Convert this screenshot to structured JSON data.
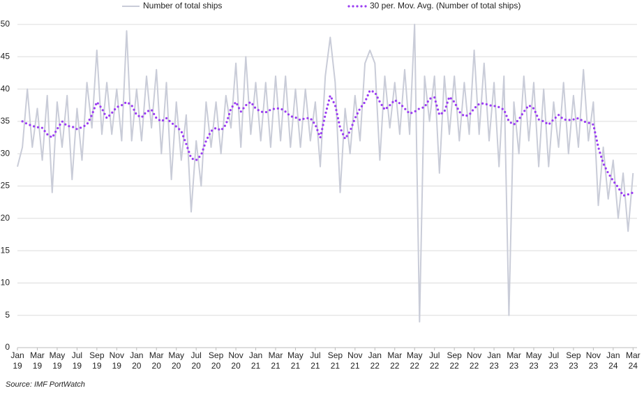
{
  "chart_data": {
    "type": "line",
    "source": "Source: IMF PortWatch",
    "x": [
      0,
      0.5,
      1,
      1.5,
      2,
      2.5,
      3,
      3.5,
      4,
      4.5,
      5,
      5.5,
      6,
      6.5,
      7,
      7.5,
      8,
      8.5,
      9,
      9.5,
      10,
      10.5,
      11,
      11.5,
      12,
      12.5,
      13,
      13.5,
      14,
      14.5,
      15,
      15.5,
      16,
      16.5,
      17,
      17.5,
      18,
      18.5,
      19,
      19.5,
      20,
      20.5,
      21,
      21.5,
      22,
      22.5,
      23,
      23.5,
      24,
      24.5,
      25,
      25.5,
      26,
      26.5,
      27,
      27.5,
      28,
      28.5,
      29,
      29.5,
      30,
      30.5,
      31,
      31.5,
      32,
      32.5,
      33,
      33.5,
      34,
      34.5,
      35,
      35.5,
      36,
      36.5,
      37,
      37.5,
      38,
      38.5,
      39,
      39.5,
      40,
      40.5,
      41,
      41.5,
      42,
      42.5,
      43,
      43.5,
      44,
      44.5,
      45,
      45.5,
      46,
      46.5,
      47,
      47.5,
      48,
      48.5,
      49,
      49.5,
      50,
      50.5,
      51,
      51.5,
      52,
      52.5,
      53,
      53.5,
      54,
      54.5,
      55,
      55.5,
      56,
      56.5,
      57,
      57.5,
      58,
      58.5,
      59,
      59.5,
      60,
      60.5,
      61,
      61.5,
      62
    ],
    "series": [
      {
        "name": "Number of total ships",
        "color": "#c9ccd8",
        "style": "solid",
        "values": [
          28,
          31,
          40,
          31,
          37,
          29,
          39,
          24,
          38,
          31,
          39,
          26,
          37,
          29,
          41,
          34,
          46,
          33,
          41,
          33,
          40,
          32,
          49,
          32,
          40,
          32,
          42,
          34,
          43,
          30,
          41,
          26,
          38,
          29,
          36,
          21,
          32,
          25,
          38,
          31,
          38,
          30,
          39,
          34,
          44,
          31,
          45,
          33,
          41,
          32,
          41,
          31,
          42,
          32,
          42,
          31,
          40,
          31,
          40,
          32,
          38,
          28,
          42,
          48,
          41,
          24,
          37,
          30,
          39,
          32,
          44,
          46,
          44,
          29,
          42,
          34,
          41,
          33,
          43,
          33,
          50,
          4,
          42,
          35,
          42,
          27,
          42,
          33,
          42,
          32,
          41,
          33,
          46,
          33,
          44,
          32,
          41,
          28,
          42,
          5,
          38,
          30,
          42,
          32,
          41,
          28,
          40,
          28,
          38,
          31,
          41,
          30,
          39,
          31,
          43,
          32,
          38,
          22,
          31,
          23,
          29,
          20,
          27,
          18,
          27
        ]
      },
      {
        "name": "30 per. Mov. Avg. (Number of total ships)",
        "color": "#9a3cf2",
        "style": "dotted",
        "values": [
          null,
          35,
          34.6,
          34.3,
          34.1,
          34,
          33,
          32.5,
          33.8,
          35,
          34.3,
          34.2,
          33.8,
          34.1,
          34.5,
          36,
          38,
          37,
          35.5,
          36.3,
          37.2,
          37.5,
          38,
          37.5,
          36,
          35.6,
          36.5,
          36.8,
          35.5,
          35,
          35.5,
          34.8,
          34.2,
          33.5,
          31.5,
          29.3,
          29,
          29.8,
          32,
          33.5,
          34,
          33.6,
          34.5,
          37,
          38,
          36.5,
          37.5,
          38,
          37,
          36.5,
          36.4,
          36.8,
          37,
          37,
          36.5,
          35.8,
          35.6,
          35.2,
          35.5,
          35.5,
          34.5,
          32.5,
          36,
          39,
          37.5,
          34,
          32.3,
          33.5,
          35.5,
          37,
          38,
          39.8,
          39.5,
          38,
          36.8,
          37.5,
          38.3,
          37.8,
          37,
          36.2,
          36.5,
          37,
          37.2,
          38.5,
          38.7,
          36,
          36.5,
          38.8,
          38,
          36.5,
          35.8,
          36,
          37,
          37.7,
          37.8,
          37.5,
          37.4,
          37.2,
          36.8,
          35,
          34.5,
          35.3,
          36.5,
          37.5,
          37,
          35.3,
          35,
          34.5,
          35.3,
          36,
          35.3,
          35.2,
          35.3,
          35.5,
          35,
          34.8,
          34.5,
          31,
          28.5,
          27,
          25.8,
          24.8,
          23.5,
          23.7,
          24
        ]
      }
    ],
    "xlim": [
      0,
      62.4
    ],
    "xticks": [
      {
        "value": 0,
        "label": "Jan 19"
      },
      {
        "value": 2,
        "label": "Mar 19"
      },
      {
        "value": 4,
        "label": "May 19"
      },
      {
        "value": 6,
        "label": "Jul 19"
      },
      {
        "value": 8,
        "label": "Sep 19"
      },
      {
        "value": 10,
        "label": "Nov 19"
      },
      {
        "value": 12,
        "label": "Jan 20"
      },
      {
        "value": 14,
        "label": "Mar 20"
      },
      {
        "value": 16,
        "label": "May 20"
      },
      {
        "value": 18,
        "label": "Jul 20"
      },
      {
        "value": 20,
        "label": "Sep 20"
      },
      {
        "value": 22,
        "label": "Nov 20"
      },
      {
        "value": 24,
        "label": "Jan 21"
      },
      {
        "value": 26,
        "label": "Mar 21"
      },
      {
        "value": 28,
        "label": "May 21"
      },
      {
        "value": 30,
        "label": "Jul 21"
      },
      {
        "value": 32,
        "label": "Sep 21"
      },
      {
        "value": 34,
        "label": "Nov 21"
      },
      {
        "value": 36,
        "label": "Jan 22"
      },
      {
        "value": 38,
        "label": "Mar 22"
      },
      {
        "value": 40,
        "label": "May 22"
      },
      {
        "value": 42,
        "label": "Jul 22"
      },
      {
        "value": 44,
        "label": "Sep 22"
      },
      {
        "value": 46,
        "label": "Nov 22"
      },
      {
        "value": 48,
        "label": "Jan 23"
      },
      {
        "value": 50,
        "label": "Mar 23"
      },
      {
        "value": 52,
        "label": "May 23"
      },
      {
        "value": 54,
        "label": "Jul 23"
      },
      {
        "value": 56,
        "label": "Sep 23"
      },
      {
        "value": 58,
        "label": "Nov 23"
      },
      {
        "value": 60,
        "label": "Jan 24"
      },
      {
        "value": 62,
        "label": "Mar 24"
      }
    ],
    "ylim": [
      0,
      50
    ],
    "yticks": [
      0,
      5,
      10,
      15,
      20,
      25,
      30,
      35,
      40,
      45,
      50
    ],
    "grid": true,
    "legend": "top"
  }
}
